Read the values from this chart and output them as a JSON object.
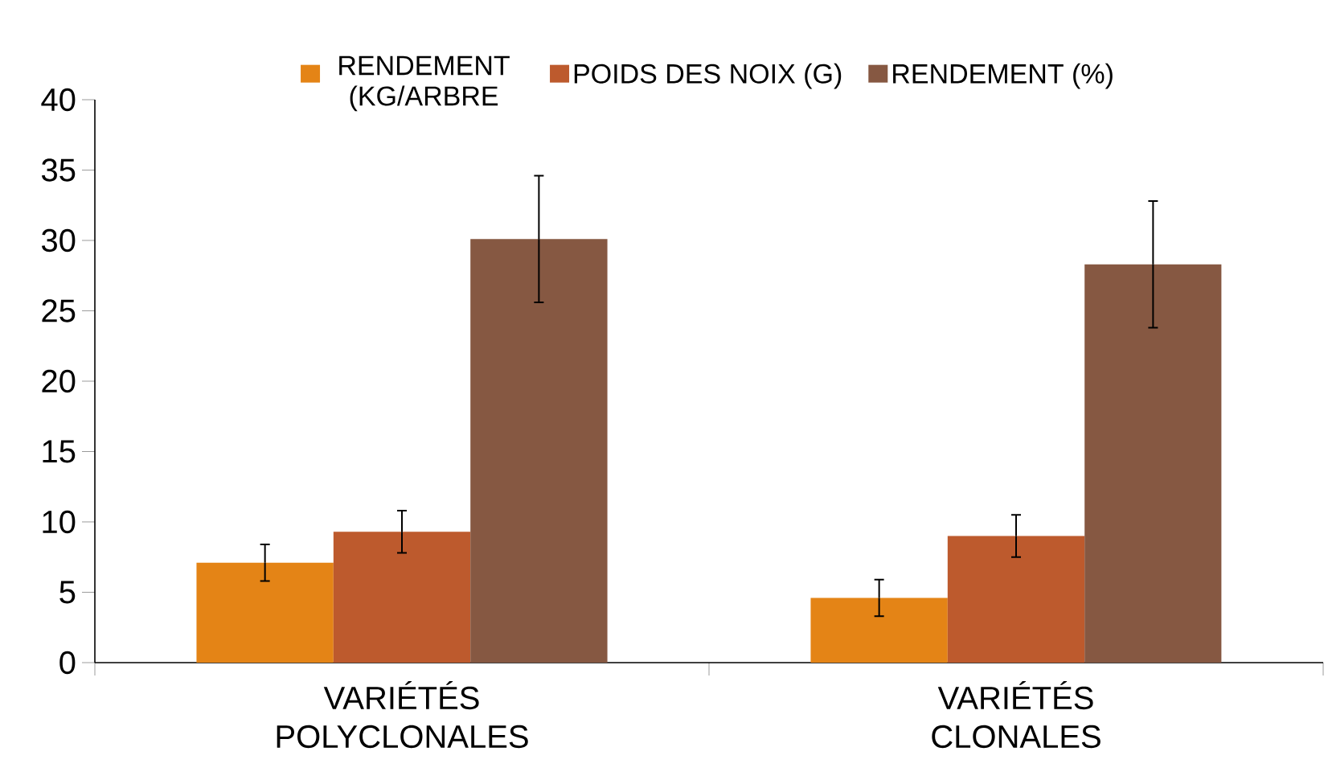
{
  "chart_data": {
    "type": "bar",
    "categories": [
      "VARIÉTÉS POLYCLONALES",
      "VARIÉTÉS CLONALES"
    ],
    "series": [
      {
        "name": "RENDEMENT (KG/ARBRE",
        "color": "#e48416",
        "values": [
          7.1,
          4.6
        ],
        "errors": [
          1.3,
          1.3
        ]
      },
      {
        "name": "POIDS DES NOIX (G)",
        "color": "#bd5a2d",
        "values": [
          9.3,
          9.0
        ],
        "errors": [
          1.5,
          1.5
        ]
      },
      {
        "name": "RENDEMENT (%)",
        "color": "#865842",
        "values": [
          30.1,
          28.3
        ],
        "errors": [
          4.5,
          4.5
        ]
      }
    ],
    "ylim": [
      0,
      40
    ],
    "yticks": [
      0,
      5,
      10,
      15,
      20,
      25,
      30,
      35,
      40
    ],
    "legend": "top",
    "grid": false
  }
}
